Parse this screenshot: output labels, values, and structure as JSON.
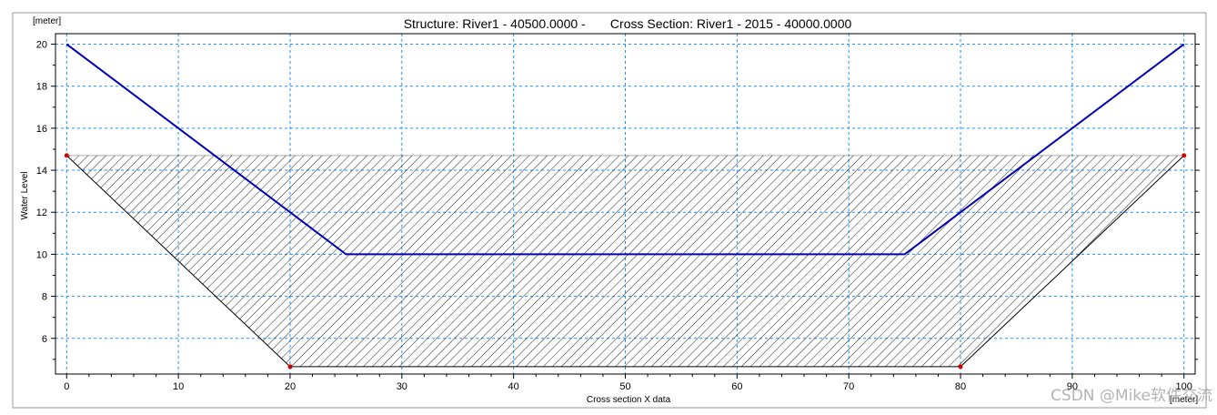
{
  "chart_data": {
    "type": "line",
    "title": "Structure: River1 - 40500.0000 -       Cross Section: River1 - 2015 - 40000.0000",
    "xlabel": "Cross section X data",
    "ylabel": "Water Level",
    "x_unit": "[meter]",
    "y_unit": "[meter]",
    "xlim": [
      -1,
      101
    ],
    "ylim": [
      4.3,
      20.5
    ],
    "x_ticks": [
      0,
      10,
      20,
      30,
      40,
      50,
      60,
      70,
      80,
      90,
      100
    ],
    "y_ticks": [
      6,
      8,
      10,
      12,
      14,
      16,
      18,
      20
    ],
    "grid": true,
    "series": [
      {
        "color": "#0000b4",
        "style": "line",
        "x": [
          0,
          25,
          75,
          100
        ],
        "y": [
          20,
          10,
          10,
          20
        ]
      },
      {
        "color": "#000000",
        "style": "hatched-area",
        "top": 14.7,
        "x": [
          0,
          20,
          80,
          100
        ],
        "y": [
          14.7,
          4.65,
          4.65,
          14.7
        ],
        "markers": [
          {
            "x": 0,
            "y": 14.7
          },
          {
            "x": 20,
            "y": 4.65
          },
          {
            "x": 80,
            "y": 4.65
          },
          {
            "x": 100,
            "y": 14.7
          }
        ]
      }
    ],
    "colors": {
      "grid": "#1e90ff",
      "marker": "#d40000",
      "hatch": "#222222"
    }
  },
  "watermark": "CSDN @Mike软件交流"
}
